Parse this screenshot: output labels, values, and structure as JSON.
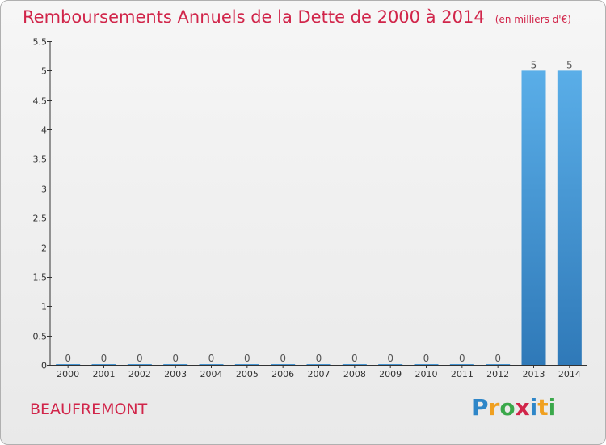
{
  "chart_data": {
    "type": "bar",
    "title": "Remboursements Annuels de la Dette de 2000 à 2014",
    "unit_label": "(en milliers d'€)",
    "categories": [
      "2000",
      "2001",
      "2002",
      "2003",
      "2004",
      "2005",
      "2006",
      "2007",
      "2008",
      "2009",
      "2010",
      "2011",
      "2012",
      "2013",
      "2014"
    ],
    "values": [
      0,
      0,
      0,
      0,
      0,
      0,
      0,
      0,
      0,
      0,
      0,
      0,
      0,
      5,
      5
    ],
    "data_labels": [
      "0",
      "0",
      "0",
      "0",
      "0",
      "0",
      "0",
      "0",
      "0",
      "0",
      "0",
      "0",
      "0",
      "5",
      "5"
    ],
    "y_ticks": [
      "0",
      "0.5",
      "1",
      "1.5",
      "2",
      "2.5",
      "3",
      "3.5",
      "4",
      "4.5",
      "5",
      "5.5"
    ],
    "y_tick_values": [
      0,
      0.5,
      1,
      1.5,
      2,
      2.5,
      3,
      3.5,
      4,
      4.5,
      5,
      5.5
    ],
    "ylim": [
      0,
      5.5
    ],
    "xlabel": "",
    "ylabel": "",
    "grid": false,
    "bar_color": "#3a8fd6"
  },
  "commune": "BEAUFREMONT",
  "logo": {
    "letters": [
      "P",
      "r",
      "o",
      "x",
      "i",
      "t",
      "i"
    ],
    "colors": [
      "#2e86c8",
      "#f0a020",
      "#3aa84a",
      "#d1254a",
      "#2e86c8",
      "#f0a020",
      "#3aa84a"
    ]
  }
}
